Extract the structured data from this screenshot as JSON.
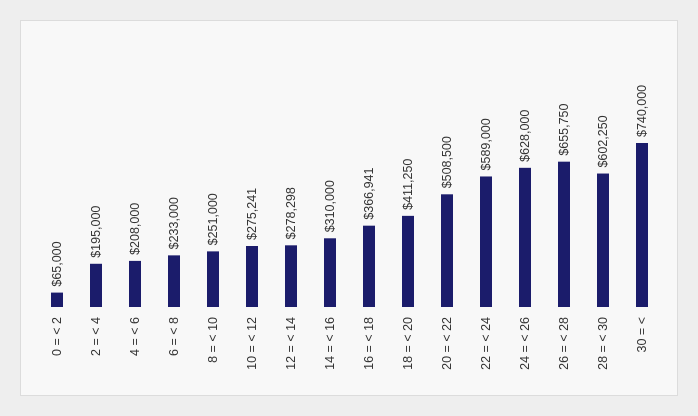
{
  "chart_data": {
    "type": "bar",
    "title": "",
    "xlabel": "",
    "ylabel": "",
    "ylim": [
      0,
      740000
    ],
    "grid": false,
    "categories": [
      "0 = < 2",
      "2 = < 4",
      "4 = < 6",
      "6 = < 8",
      "8 = < 10",
      "10 = < 12",
      "12 = < 14",
      "14 = < 16",
      "16 = < 18",
      "18 = < 20",
      "20 = < 22",
      "22 = < 24",
      "24 = < 26",
      "26 = < 28",
      "28 = < 30",
      "30 = <"
    ],
    "values": [
      65000,
      195000,
      208000,
      233000,
      251000,
      275241,
      278298,
      310000,
      366941,
      411250,
      508500,
      589000,
      628000,
      655750,
      602250,
      740000
    ],
    "data_labels": [
      "$65,000",
      "$195,000",
      "$208,000",
      "$233,000",
      "$251,000",
      "$275,241",
      "$278,298",
      "$310,000",
      "$366,941",
      "$411,250",
      "$508,500",
      "$589,000",
      "$628,000",
      "$655,750",
      "$602,250",
      "$740,000"
    ],
    "colors": {
      "bar": "#1b1c6b",
      "background": "#f8f8f8",
      "page": "#eeeeee",
      "text": "#333333"
    }
  }
}
